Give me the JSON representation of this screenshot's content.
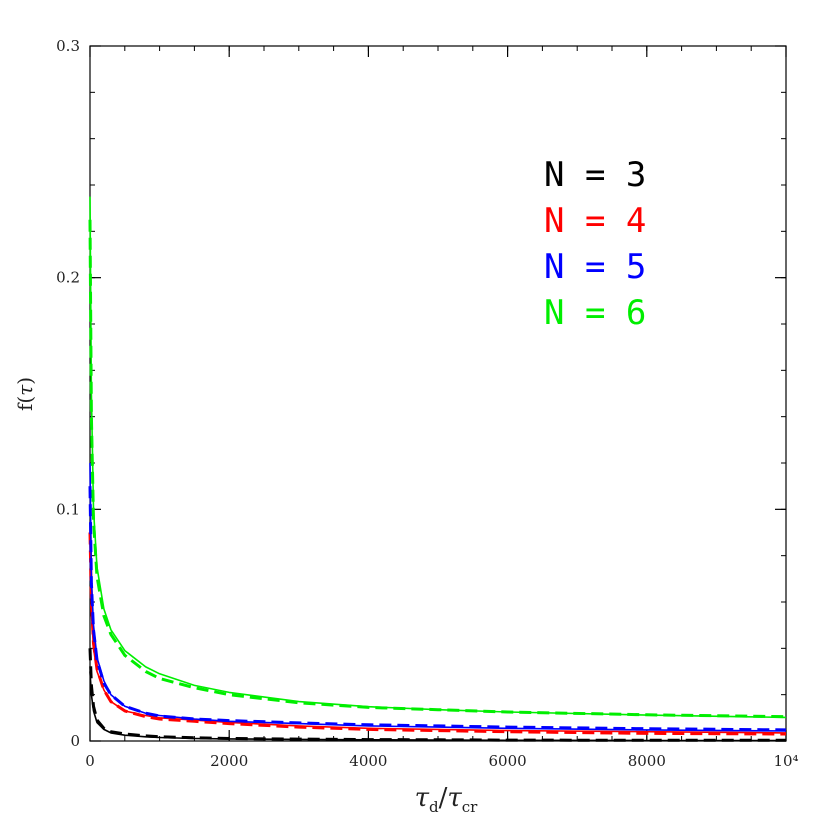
{
  "chart_data": {
    "type": "line",
    "title": "",
    "xlabel": {
      "main": "τ",
      "sub": "d",
      "slash": "/",
      "main2": "τ",
      "sub2": "cr"
    },
    "ylabel": {
      "pre": "f(",
      "sym": "τ",
      "post": ")"
    },
    "xlim": [
      0,
      10000
    ],
    "ylim": [
      0,
      0.3
    ],
    "x_ticks": [
      {
        "value": 0,
        "label": "0"
      },
      {
        "value": 2000,
        "label": "2000"
      },
      {
        "value": 4000,
        "label": "4000"
      },
      {
        "value": 6000,
        "label": "6000"
      },
      {
        "value": 8000,
        "label": "8000"
      },
      {
        "value": 10000,
        "label": "10⁴"
      }
    ],
    "y_ticks": [
      {
        "value": 0,
        "label": "0"
      },
      {
        "value": 0.1,
        "label": "0.1"
      },
      {
        "value": 0.2,
        "label": "0.2"
      },
      {
        "value": 0.3,
        "label": "0.3"
      }
    ],
    "grid": false,
    "legend_placement": "upper-right",
    "legend": [
      {
        "text": "N = 3",
        "color": "#000000"
      },
      {
        "text": "N = 4",
        "color": "#ff0000"
      },
      {
        "text": "N = 5",
        "color": "#0000ff"
      },
      {
        "text": "N = 6",
        "color": "#00ee00"
      }
    ],
    "series": [
      {
        "color": "#000000",
        "style": "solid",
        "x": [
          0,
          20,
          50,
          100,
          200,
          300,
          500,
          800,
          1000,
          1500,
          2000,
          3000,
          4000,
          5000,
          6000,
          8000,
          10000
        ],
        "y": [
          0.03,
          0.02,
          0.013,
          0.008,
          0.005,
          0.0035,
          0.0025,
          0.0018,
          0.0015,
          0.0011,
          0.0009,
          0.0007,
          0.0005,
          0.0004,
          0.0003,
          0.0002,
          0.0002
        ]
      },
      {
        "color": "#000000",
        "style": "dashed",
        "x": [
          0,
          20,
          50,
          100,
          200,
          300,
          500,
          800,
          1000,
          1500,
          2000,
          3000,
          4000,
          5000,
          6000,
          8000,
          10000
        ],
        "y": [
          0.04,
          0.024,
          0.015,
          0.009,
          0.0055,
          0.004,
          0.003,
          0.0022,
          0.0018,
          0.0014,
          0.0011,
          0.0008,
          0.0006,
          0.0005,
          0.0004,
          0.0003,
          0.0003
        ]
      },
      {
        "color": "#ff0000",
        "style": "solid",
        "x": [
          0,
          20,
          50,
          100,
          200,
          300,
          500,
          800,
          1000,
          1500,
          2000,
          3000,
          4000,
          5000,
          6000,
          8000,
          10000
        ],
        "y": [
          0.085,
          0.055,
          0.04,
          0.03,
          0.022,
          0.017,
          0.013,
          0.011,
          0.01,
          0.009,
          0.008,
          0.0065,
          0.0055,
          0.005,
          0.0045,
          0.004,
          0.0035
        ]
      },
      {
        "color": "#ff0000",
        "style": "dashed",
        "x": [
          0,
          20,
          50,
          100,
          200,
          300,
          500,
          800,
          1000,
          1500,
          2000,
          3000,
          4000,
          5000,
          6000,
          8000,
          10000
        ],
        "y": [
          0.09,
          0.06,
          0.042,
          0.031,
          0.022,
          0.017,
          0.013,
          0.0105,
          0.0095,
          0.0085,
          0.0075,
          0.006,
          0.005,
          0.0045,
          0.004,
          0.0033,
          0.003
        ]
      },
      {
        "color": "#0000ff",
        "style": "solid",
        "x": [
          0,
          20,
          50,
          100,
          200,
          300,
          500,
          800,
          1000,
          1500,
          2000,
          3000,
          4000,
          5000,
          6000,
          8000,
          10000
        ],
        "y": [
          0.12,
          0.07,
          0.05,
          0.036,
          0.026,
          0.02,
          0.015,
          0.012,
          0.011,
          0.0095,
          0.0085,
          0.0075,
          0.0065,
          0.006,
          0.0055,
          0.0048,
          0.0043
        ]
      },
      {
        "color": "#0000ff",
        "style": "dashed",
        "x": [
          0,
          20,
          50,
          100,
          200,
          300,
          500,
          800,
          1000,
          1500,
          2000,
          3000,
          4000,
          5000,
          6000,
          8000,
          10000
        ],
        "y": [
          0.11,
          0.068,
          0.048,
          0.035,
          0.025,
          0.02,
          0.015,
          0.012,
          0.0108,
          0.0095,
          0.0088,
          0.0078,
          0.007,
          0.0065,
          0.006,
          0.0053,
          0.0048
        ]
      },
      {
        "color": "#00ee00",
        "style": "solid",
        "x": [
          0,
          20,
          50,
          100,
          200,
          300,
          500,
          800,
          1000,
          1500,
          2000,
          3000,
          4000,
          5000,
          6000,
          8000,
          10000
        ],
        "y": [
          0.235,
          0.15,
          0.1,
          0.075,
          0.057,
          0.048,
          0.039,
          0.032,
          0.029,
          0.024,
          0.021,
          0.017,
          0.0148,
          0.0135,
          0.0125,
          0.0112,
          0.0102
        ]
      },
      {
        "color": "#00ee00",
        "style": "dashed",
        "x": [
          0,
          20,
          50,
          100,
          200,
          300,
          500,
          800,
          1000,
          1500,
          2000,
          3000,
          4000,
          5000,
          6000,
          8000,
          10000
        ],
        "y": [
          0.225,
          0.14,
          0.095,
          0.071,
          0.054,
          0.046,
          0.037,
          0.03,
          0.027,
          0.023,
          0.02,
          0.0165,
          0.0145,
          0.0135,
          0.0125,
          0.0113,
          0.0105
        ]
      }
    ]
  }
}
